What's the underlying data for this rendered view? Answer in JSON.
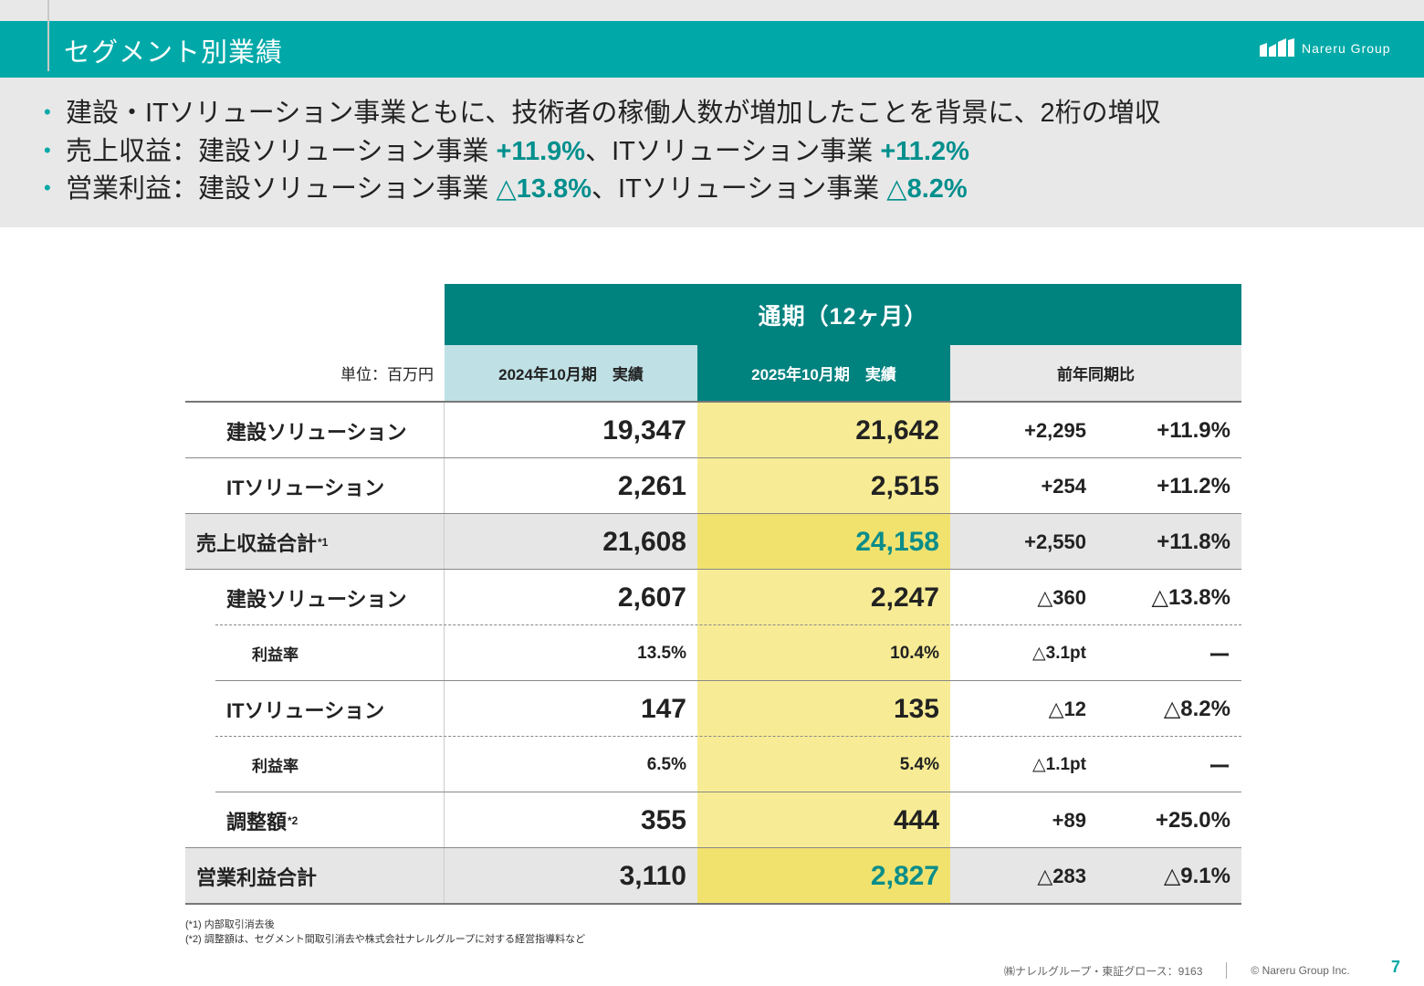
{
  "header": {
    "title": "セグメント別業績",
    "logo_text": "Nareru Group",
    "accent": "#00a9a8"
  },
  "summary": {
    "bullets": [
      {
        "text": "建設・ITソリューション事業ともに、技術者の稼働人数が増加したことを背景に、2桁の増収"
      },
      {
        "pre": "売上収益：建設ソリューション事業 ",
        "hl1": "+11.9%",
        "mid": "、ITソリューション事業 ",
        "hl2": "+11.2%"
      },
      {
        "pre": "営業利益：建設ソリューション事業 ",
        "hl1": "△13.8%",
        "mid": "、ITソリューション事業 ",
        "hl2": "△8.2%"
      }
    ]
  },
  "table": {
    "period_header": "通期（12ヶ月）",
    "unit": "単位：百万円",
    "col1": "2024年10月期　実績",
    "col2": "2025年10月期　実績",
    "col3": "前年同期比",
    "rows": [
      {
        "label": "建設ソリューション",
        "v1": "19,347",
        "v2": "21,642",
        "d1": "+2,295",
        "d2": "+11.9%"
      },
      {
        "label": "ITソリューション",
        "v1": "2,261",
        "v2": "2,515",
        "d1": "+254",
        "d2": "+11.2%"
      },
      {
        "label": "売上収益合計",
        "sup": "*1",
        "v1": "21,608",
        "v2": "24,158",
        "d1": "+2,550",
        "d2": "+11.8%"
      },
      {
        "label": "建設ソリューション",
        "v1": "2,607",
        "v2": "2,247",
        "d1": "△360",
        "d2": "△13.8%"
      },
      {
        "label": "利益率",
        "v1": "13.5%",
        "v2": "10.4%",
        "d1": "△3.1pt",
        "d2": "ー"
      },
      {
        "label": "ITソリューション",
        "v1": "147",
        "v2": "135",
        "d1": "△12",
        "d2": "△8.2%"
      },
      {
        "label": "利益率",
        "v1": "6.5%",
        "v2": "5.4%",
        "d1": "△1.1pt",
        "d2": "ー"
      },
      {
        "label": "調整額",
        "sup": "*2",
        "v1": "355",
        "v2": "444",
        "d1": "+89",
        "d2": "+25.0%"
      },
      {
        "label": "営業利益合計",
        "v1": "3,110",
        "v2": "2,827",
        "d1": "△283",
        "d2": "△9.1%"
      }
    ]
  },
  "notes": [
    "(*1)  内部取引消去後",
    "(*2)  調整額は、セグメント間取引消去や株式会社ナレルグループに対する経営指導料など"
  ],
  "footer": {
    "company": "㈱ナレルグループ・東証グロース：9163",
    "copyright": "© Nareru Group Inc.",
    "page": "7"
  }
}
